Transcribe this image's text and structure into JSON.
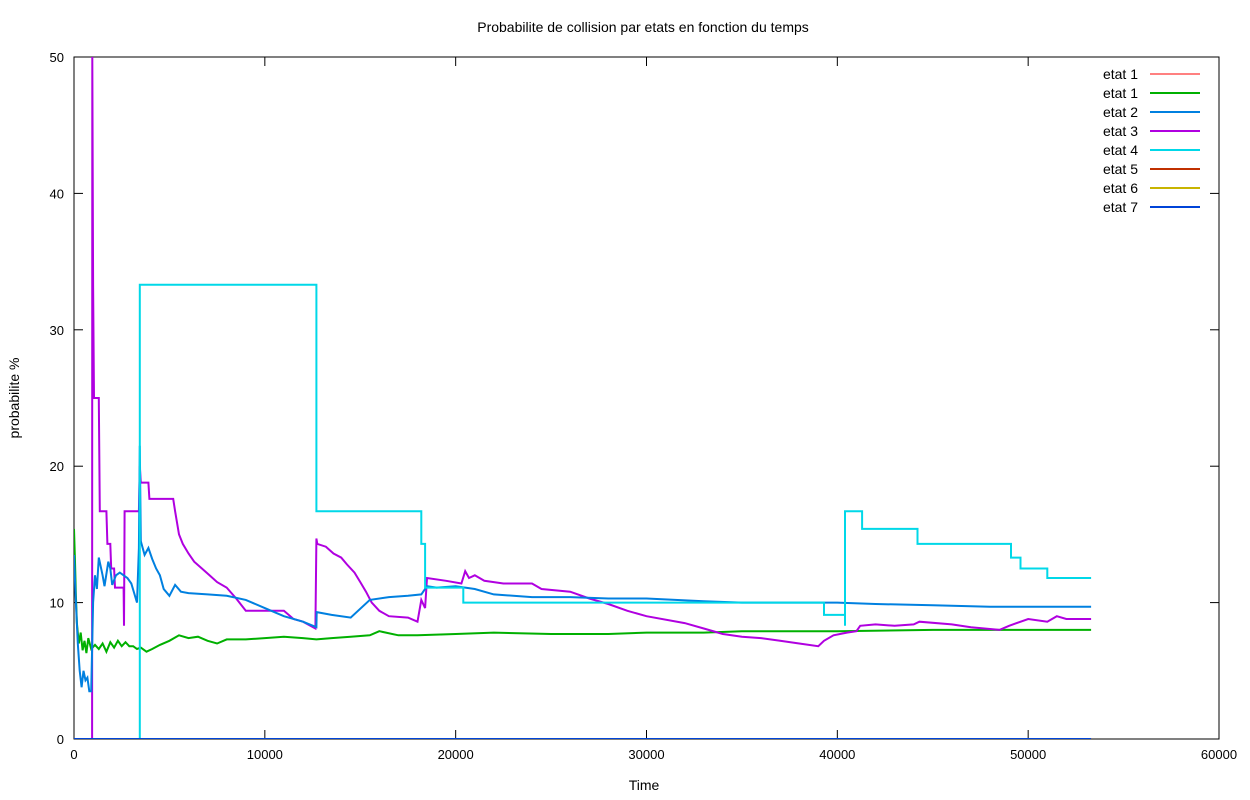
{
  "chart_data": {
    "type": "line",
    "title": "Probabilite de collision par etats en fonction du temps",
    "xlabel": "Time",
    "ylabel": "probabilite %",
    "xlim": [
      0,
      60000
    ],
    "ylim": [
      0,
      50
    ],
    "x_ticks": [
      0,
      10000,
      20000,
      30000,
      40000,
      50000,
      60000
    ],
    "y_ticks": [
      0,
      10,
      20,
      30,
      40,
      50
    ],
    "grid": false,
    "legend_position": "top-right",
    "series": [
      {
        "name": "etat 1",
        "color": "#ff0000",
        "width": 1,
        "points": [
          [
            0,
            0
          ],
          [
            53300,
            0
          ]
        ]
      },
      {
        "name": "etat 1",
        "color": "#00b000",
        "width": 2,
        "points": [
          [
            0,
            15.4
          ],
          [
            50,
            13
          ],
          [
            100,
            10.5
          ],
          [
            150,
            8.5
          ],
          [
            250,
            7
          ],
          [
            350,
            7.8
          ],
          [
            450,
            6.5
          ],
          [
            550,
            7.2
          ],
          [
            650,
            6.3
          ],
          [
            750,
            7.4
          ],
          [
            900,
            6.6
          ],
          [
            1100,
            6.9
          ],
          [
            1300,
            6.6
          ],
          [
            1500,
            7.0
          ],
          [
            1700,
            6.4
          ],
          [
            1900,
            7.1
          ],
          [
            2100,
            6.7
          ],
          [
            2300,
            7.2
          ],
          [
            2500,
            6.8
          ],
          [
            2700,
            7.1
          ],
          [
            2900,
            6.8
          ],
          [
            3100,
            6.8
          ],
          [
            3300,
            6.6
          ],
          [
            3500,
            6.7
          ],
          [
            3800,
            6.4
          ],
          [
            4100,
            6.6
          ],
          [
            4500,
            6.9
          ],
          [
            5000,
            7.2
          ],
          [
            5500,
            7.6
          ],
          [
            6000,
            7.4
          ],
          [
            6500,
            7.5
          ],
          [
            7000,
            7.2
          ],
          [
            7500,
            7.0
          ],
          [
            8000,
            7.3
          ],
          [
            9000,
            7.3
          ],
          [
            10000,
            7.4
          ],
          [
            11000,
            7.5
          ],
          [
            12000,
            7.4
          ],
          [
            12700,
            7.3
          ],
          [
            13500,
            7.4
          ],
          [
            14500,
            7.5
          ],
          [
            15500,
            7.6
          ],
          [
            16000,
            7.9
          ],
          [
            17000,
            7.6
          ],
          [
            18000,
            7.6
          ],
          [
            20000,
            7.7
          ],
          [
            22000,
            7.8
          ],
          [
            25000,
            7.7
          ],
          [
            28000,
            7.7
          ],
          [
            30000,
            7.8
          ],
          [
            33000,
            7.8
          ],
          [
            35000,
            7.9
          ],
          [
            40000,
            7.9
          ],
          [
            45000,
            8.0
          ],
          [
            50000,
            8.0
          ],
          [
            53300,
            8.0
          ]
        ]
      },
      {
        "name": "etat 2",
        "color": "#0080e0",
        "width": 2,
        "points": [
          [
            0,
            13.5
          ],
          [
            100,
            10
          ],
          [
            200,
            7
          ],
          [
            300,
            5
          ],
          [
            400,
            3.8
          ],
          [
            500,
            5
          ],
          [
            600,
            4.3
          ],
          [
            700,
            4.5
          ],
          [
            800,
            3.5
          ],
          [
            900,
            3.5
          ],
          [
            1000,
            10
          ],
          [
            1100,
            12
          ],
          [
            1200,
            11
          ],
          [
            1300,
            13.3
          ],
          [
            1500,
            12
          ],
          [
            1600,
            11.2
          ],
          [
            1800,
            13
          ],
          [
            1900,
            12.5
          ],
          [
            2000,
            11.3
          ],
          [
            2200,
            12
          ],
          [
            2400,
            12.2
          ],
          [
            2600,
            12
          ],
          [
            2800,
            11.8
          ],
          [
            3000,
            11.4
          ],
          [
            3300,
            10
          ],
          [
            3400,
            14
          ],
          [
            3450,
            21.5
          ],
          [
            3500,
            14.5
          ],
          [
            3700,
            13.5
          ],
          [
            3900,
            14
          ],
          [
            4100,
            13.2
          ],
          [
            4300,
            12.5
          ],
          [
            4500,
            12
          ],
          [
            4700,
            11
          ],
          [
            5000,
            10.5
          ],
          [
            5300,
            11.3
          ],
          [
            5600,
            10.8
          ],
          [
            6000,
            10.7
          ],
          [
            7000,
            10.6
          ],
          [
            8000,
            10.5
          ],
          [
            9000,
            10.2
          ],
          [
            10000,
            9.6
          ],
          [
            11000,
            9
          ],
          [
            12000,
            8.6
          ],
          [
            12700,
            8.2
          ],
          [
            12720,
            9.3
          ],
          [
            13500,
            9.1
          ],
          [
            14500,
            8.9
          ],
          [
            15500,
            10.2
          ],
          [
            16500,
            10.4
          ],
          [
            17500,
            10.5
          ],
          [
            18200,
            10.6
          ],
          [
            18500,
            11.2
          ],
          [
            19000,
            11.1
          ],
          [
            20000,
            11.2
          ],
          [
            21000,
            11
          ],
          [
            22000,
            10.6
          ],
          [
            24000,
            10.4
          ],
          [
            26000,
            10.4
          ],
          [
            28000,
            10.3
          ],
          [
            30000,
            10.3
          ],
          [
            33000,
            10.1
          ],
          [
            35000,
            10
          ],
          [
            38000,
            10
          ],
          [
            40000,
            10
          ],
          [
            42000,
            9.9
          ],
          [
            45000,
            9.8
          ],
          [
            48000,
            9.7
          ],
          [
            50000,
            9.7
          ],
          [
            53300,
            9.7
          ]
        ]
      },
      {
        "name": "etat 3",
        "color": "#b000e0",
        "width": 2,
        "points": [
          [
            950,
            0
          ],
          [
            960,
            50
          ],
          [
            1000,
            33.3
          ],
          [
            1050,
            25
          ],
          [
            1300,
            25
          ],
          [
            1350,
            16.7
          ],
          [
            1700,
            16.7
          ],
          [
            1750,
            14.3
          ],
          [
            1900,
            14.3
          ],
          [
            1950,
            12.5
          ],
          [
            2100,
            12.5
          ],
          [
            2150,
            11.1
          ],
          [
            2600,
            11.1
          ],
          [
            2620,
            8.3
          ],
          [
            2650,
            16.7
          ],
          [
            3400,
            16.7
          ],
          [
            3450,
            20
          ],
          [
            3500,
            18.8
          ],
          [
            3900,
            18.8
          ],
          [
            3950,
            17.6
          ],
          [
            5200,
            17.6
          ],
          [
            5300,
            16.7
          ],
          [
            5500,
            15
          ],
          [
            5700,
            14.3
          ],
          [
            6000,
            13.6
          ],
          [
            6300,
            13
          ],
          [
            6700,
            12.5
          ],
          [
            7100,
            12
          ],
          [
            7500,
            11.5
          ],
          [
            8000,
            11.1
          ],
          [
            8500,
            10.3
          ],
          [
            9000,
            9.4
          ],
          [
            11000,
            9.4
          ],
          [
            11500,
            8.8
          ],
          [
            12000,
            8.6
          ],
          [
            12650,
            8.1
          ],
          [
            12700,
            14.7
          ],
          [
            12750,
            14.3
          ],
          [
            13200,
            14.1
          ],
          [
            13600,
            13.6
          ],
          [
            14000,
            13.3
          ],
          [
            14300,
            12.8
          ],
          [
            14700,
            12.2
          ],
          [
            15000,
            11.5
          ],
          [
            15300,
            10.8
          ],
          [
            15600,
            10
          ],
          [
            16000,
            9.4
          ],
          [
            16500,
            9
          ],
          [
            17500,
            8.9
          ],
          [
            18000,
            8.6
          ],
          [
            18200,
            10.2
          ],
          [
            18400,
            9.6
          ],
          [
            18500,
            11.8
          ],
          [
            19500,
            11.6
          ],
          [
            20300,
            11.4
          ],
          [
            20500,
            12.3
          ],
          [
            20700,
            11.8
          ],
          [
            21000,
            12
          ],
          [
            21500,
            11.6
          ],
          [
            22500,
            11.4
          ],
          [
            24000,
            11.4
          ],
          [
            24500,
            11
          ],
          [
            26000,
            10.8
          ],
          [
            27000,
            10.3
          ],
          [
            28000,
            9.9
          ],
          [
            29000,
            9.4
          ],
          [
            30000,
            9
          ],
          [
            32000,
            8.5
          ],
          [
            33000,
            8.1
          ],
          [
            34000,
            7.7
          ],
          [
            35000,
            7.5
          ],
          [
            36000,
            7.4
          ],
          [
            37000,
            7.2
          ],
          [
            38000,
            7.0
          ],
          [
            39000,
            6.8
          ],
          [
            39300,
            7.2
          ],
          [
            39800,
            7.6
          ],
          [
            40500,
            7.8
          ],
          [
            41000,
            7.9
          ],
          [
            41200,
            8.3
          ],
          [
            42000,
            8.4
          ],
          [
            43000,
            8.3
          ],
          [
            44000,
            8.4
          ],
          [
            44300,
            8.6
          ],
          [
            46000,
            8.4
          ],
          [
            47000,
            8.2
          ],
          [
            48500,
            8.0
          ],
          [
            49000,
            8.3
          ],
          [
            50000,
            8.8
          ],
          [
            51000,
            8.6
          ],
          [
            51500,
            9
          ],
          [
            52000,
            8.8
          ],
          [
            53300,
            8.8
          ]
        ]
      },
      {
        "name": "etat 4",
        "color": "#00d8e8",
        "width": 2,
        "points": [
          [
            3450,
            0
          ],
          [
            3450,
            33.3
          ],
          [
            12700,
            33.3
          ],
          [
            12700,
            16.7
          ],
          [
            18200,
            16.7
          ],
          [
            18200,
            14.3
          ],
          [
            18400,
            14.3
          ],
          [
            18400,
            11.1
          ],
          [
            20400,
            11.1
          ],
          [
            20400,
            10
          ],
          [
            39300,
            10
          ],
          [
            39300,
            9.1
          ],
          [
            40400,
            9.1
          ],
          [
            40400,
            8.3
          ],
          [
            40400,
            16.7
          ],
          [
            41300,
            16.7
          ],
          [
            41300,
            15.4
          ],
          [
            44200,
            15.4
          ],
          [
            44200,
            14.3
          ],
          [
            49100,
            14.3
          ],
          [
            49100,
            13.3
          ],
          [
            49600,
            13.3
          ],
          [
            49600,
            12.5
          ],
          [
            51000,
            12.5
          ],
          [
            51000,
            11.8
          ],
          [
            53300,
            11.8
          ]
        ]
      },
      {
        "name": "etat 5",
        "color": "#c03000",
        "width": 2,
        "points": [
          [
            0,
            0
          ],
          [
            53300,
            0
          ]
        ]
      },
      {
        "name": "etat 6",
        "color": "#c8b400",
        "width": 2,
        "points": [
          [
            0,
            0
          ],
          [
            53300,
            0
          ]
        ]
      },
      {
        "name": "etat 7",
        "color": "#0044d8",
        "width": 2,
        "points": [
          [
            0,
            0
          ],
          [
            53300,
            0
          ]
        ]
      }
    ]
  }
}
